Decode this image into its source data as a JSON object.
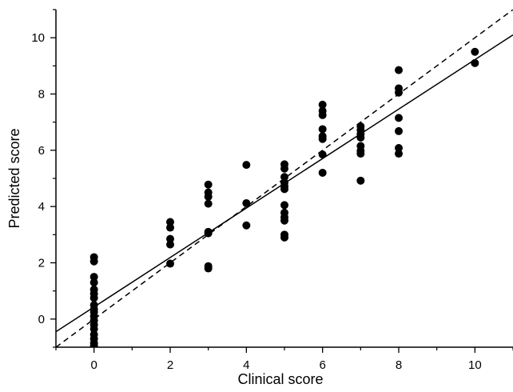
{
  "chart_data": {
    "type": "scatter",
    "title": "",
    "xlabel": "Clinical score",
    "ylabel": "Predicted score",
    "xlim": [
      -1,
      11
    ],
    "ylim": [
      -1,
      11
    ],
    "x_ticks": [
      0,
      2,
      4,
      6,
      8,
      10
    ],
    "y_ticks": [
      0,
      2,
      4,
      6,
      8,
      10
    ],
    "x_ticks_minor": [
      -1,
      1,
      3,
      5,
      7,
      9,
      11
    ],
    "y_ticks_minor": [
      -1,
      1,
      3,
      5,
      7,
      9,
      11
    ],
    "grid": false,
    "legend": "none",
    "marker_color": "#000000",
    "series": [
      {
        "points": [
          [
            0,
            2.2
          ],
          [
            0,
            2.05
          ],
          [
            0,
            1.5
          ],
          [
            0,
            1.3
          ],
          [
            0,
            1.05
          ],
          [
            0,
            0.9
          ],
          [
            0,
            0.75
          ],
          [
            0,
            0.5
          ],
          [
            0,
            0.35
          ],
          [
            0,
            0.25
          ],
          [
            0,
            0.1
          ],
          [
            0,
            -0.05
          ],
          [
            0,
            -0.2
          ],
          [
            0,
            -0.35
          ],
          [
            0,
            -0.55
          ],
          [
            0,
            -0.7
          ],
          [
            0,
            -0.85
          ],
          [
            0,
            -0.95
          ],
          [
            2,
            3.45
          ],
          [
            2,
            3.25
          ],
          [
            2,
            2.85
          ],
          [
            2,
            2.65
          ],
          [
            2,
            1.97
          ],
          [
            3,
            4.78
          ],
          [
            3,
            4.5
          ],
          [
            3,
            4.35
          ],
          [
            3,
            4.1
          ],
          [
            3,
            3.1
          ],
          [
            3,
            3.05
          ],
          [
            3,
            1.88
          ],
          [
            3,
            1.8
          ],
          [
            4,
            5.48
          ],
          [
            4,
            4.12
          ],
          [
            4,
            3.33
          ],
          [
            5,
            5.5
          ],
          [
            5,
            5.35
          ],
          [
            5,
            5.05
          ],
          [
            5,
            4.85
          ],
          [
            5,
            4.72
          ],
          [
            5,
            4.62
          ],
          [
            5,
            4.05
          ],
          [
            5,
            3.78
          ],
          [
            5,
            3.62
          ],
          [
            5,
            3.5
          ],
          [
            5,
            3.0
          ],
          [
            5,
            2.9
          ],
          [
            6,
            7.62
          ],
          [
            6,
            7.4
          ],
          [
            6,
            7.25
          ],
          [
            6,
            6.75
          ],
          [
            6,
            6.5
          ],
          [
            6,
            6.4
          ],
          [
            6,
            5.85
          ],
          [
            6,
            5.2
          ],
          [
            7,
            6.85
          ],
          [
            7,
            6.72
          ],
          [
            7,
            6.58
          ],
          [
            7,
            6.45
          ],
          [
            7,
            6.15
          ],
          [
            7,
            5.98
          ],
          [
            7,
            5.88
          ],
          [
            7,
            4.92
          ],
          [
            8,
            8.85
          ],
          [
            8,
            8.2
          ],
          [
            8,
            8.05
          ],
          [
            8,
            7.15
          ],
          [
            8,
            6.68
          ],
          [
            8,
            6.08
          ],
          [
            8,
            5.88
          ],
          [
            10,
            9.5
          ],
          [
            10,
            9.1
          ]
        ]
      }
    ],
    "lines": [
      {
        "style": "solid",
        "x": [
          -1,
          11
        ],
        "y": [
          -0.45,
          10.1
        ]
      },
      {
        "style": "dashed",
        "x": [
          -1,
          11
        ],
        "y": [
          -1,
          11
        ]
      }
    ]
  }
}
